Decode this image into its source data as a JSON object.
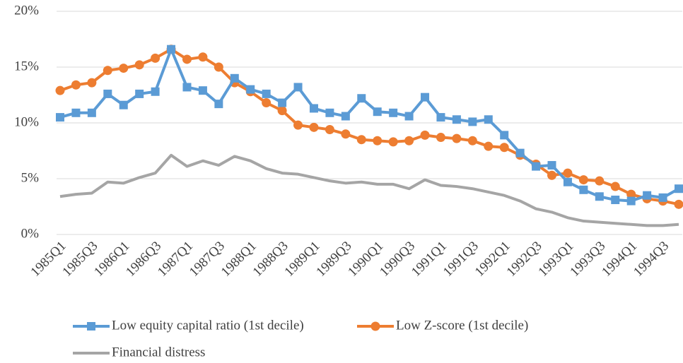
{
  "chart_data": {
    "type": "line",
    "categories": [
      "1985Q1",
      null,
      "1985Q3",
      null,
      "1986Q1",
      null,
      "1986Q3",
      null,
      "1987Q1",
      null,
      "1987Q3",
      null,
      "1988Q1",
      null,
      "1988Q3",
      null,
      "1989Q1",
      null,
      "1989Q3",
      null,
      "1990Q1",
      null,
      "1990Q3",
      null,
      "1991Q1",
      null,
      "1991Q3",
      null,
      "1992Q1",
      null,
      "1992Q3",
      null,
      "1993Q1",
      null,
      "1993Q3",
      null,
      "1994Q1",
      null,
      "1994Q3",
      null
    ],
    "series": [
      {
        "name": "Low equity capital ratio (1st decile)",
        "color": "#5b9bd5",
        "marker": "square",
        "values": [
          10.5,
          10.9,
          10.9,
          12.6,
          11.6,
          12.6,
          12.8,
          16.6,
          13.2,
          12.9,
          11.7,
          14.0,
          13.0,
          12.6,
          11.8,
          13.2,
          11.3,
          10.9,
          10.6,
          12.2,
          11.0,
          10.9,
          10.6,
          12.3,
          10.5,
          10.3,
          10.1,
          10.3,
          8.9,
          7.3,
          6.1,
          6.2,
          4.7,
          4.0,
          3.4,
          3.1,
          3.0,
          3.5,
          3.3,
          4.1
        ]
      },
      {
        "name": "Low Z-score (1st decile)",
        "color": "#ed7d31",
        "marker": "circle",
        "values": [
          12.9,
          13.4,
          13.6,
          14.7,
          14.9,
          15.2,
          15.8,
          16.6,
          15.7,
          15.9,
          15.0,
          13.6,
          12.8,
          11.8,
          11.1,
          9.8,
          9.6,
          9.4,
          9.0,
          8.5,
          8.4,
          8.3,
          8.4,
          8.9,
          8.7,
          8.6,
          8.4,
          7.9,
          7.8,
          7.1,
          6.3,
          5.3,
          5.5,
          4.9,
          4.8,
          4.3,
          3.6,
          3.2,
          3.0,
          2.7
        ]
      },
      {
        "name": "Financial distress",
        "color": "#a5a5a5",
        "marker": "none",
        "values": [
          3.4,
          3.6,
          3.7,
          4.7,
          4.6,
          5.1,
          5.5,
          7.1,
          6.1,
          6.6,
          6.2,
          7.0,
          6.6,
          5.9,
          5.5,
          5.4,
          5.1,
          4.8,
          4.6,
          4.7,
          4.5,
          4.5,
          4.1,
          4.9,
          4.4,
          4.3,
          4.1,
          3.8,
          3.5,
          3.0,
          2.3,
          2.0,
          1.5,
          1.2,
          1.1,
          1.0,
          0.9,
          0.8,
          0.8,
          0.9
        ]
      }
    ],
    "ylim": [
      0,
      20
    ],
    "yticks": [
      {
        "value": 0,
        "label": "0%"
      },
      {
        "value": 5,
        "label": "5%"
      },
      {
        "value": 10,
        "label": "10%"
      },
      {
        "value": 15,
        "label": "15%"
      },
      {
        "value": 20,
        "label": "20%"
      }
    ],
    "grid": true,
    "legend": "bottom"
  }
}
